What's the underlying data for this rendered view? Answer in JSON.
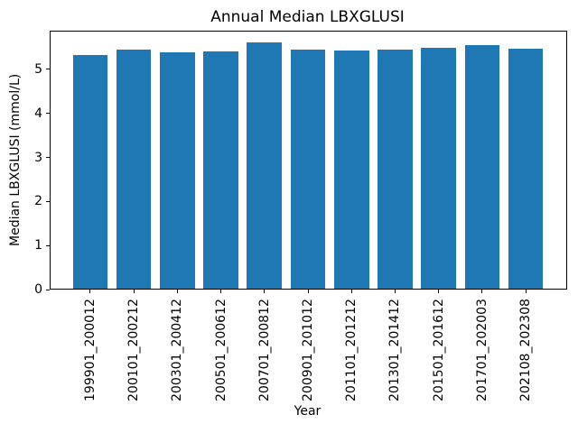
{
  "chart_data": {
    "type": "bar",
    "title": "Annual Median LBXGLUSI",
    "xlabel": "Year",
    "ylabel": "Median LBXGLUSI (mmol/L)",
    "categories": [
      "199901_200012",
      "200101_200212",
      "200301_200412",
      "200501_200612",
      "200701_200812",
      "200901_201012",
      "201101_201212",
      "201301_201412",
      "201501_201612",
      "201701_202003",
      "202108_202308"
    ],
    "values": [
      5.33,
      5.44,
      5.38,
      5.41,
      5.61,
      5.44,
      5.43,
      5.44,
      5.49,
      5.55,
      5.46
    ],
    "yticks": [
      0,
      1,
      2,
      3,
      4,
      5
    ],
    "ylim": [
      0,
      5.89
    ],
    "bar_color": "#1f77b4",
    "axis_color": "#000000",
    "background_color": "#ffffff",
    "x_tick_rotation": 90,
    "grid": false,
    "legend": "none"
  }
}
